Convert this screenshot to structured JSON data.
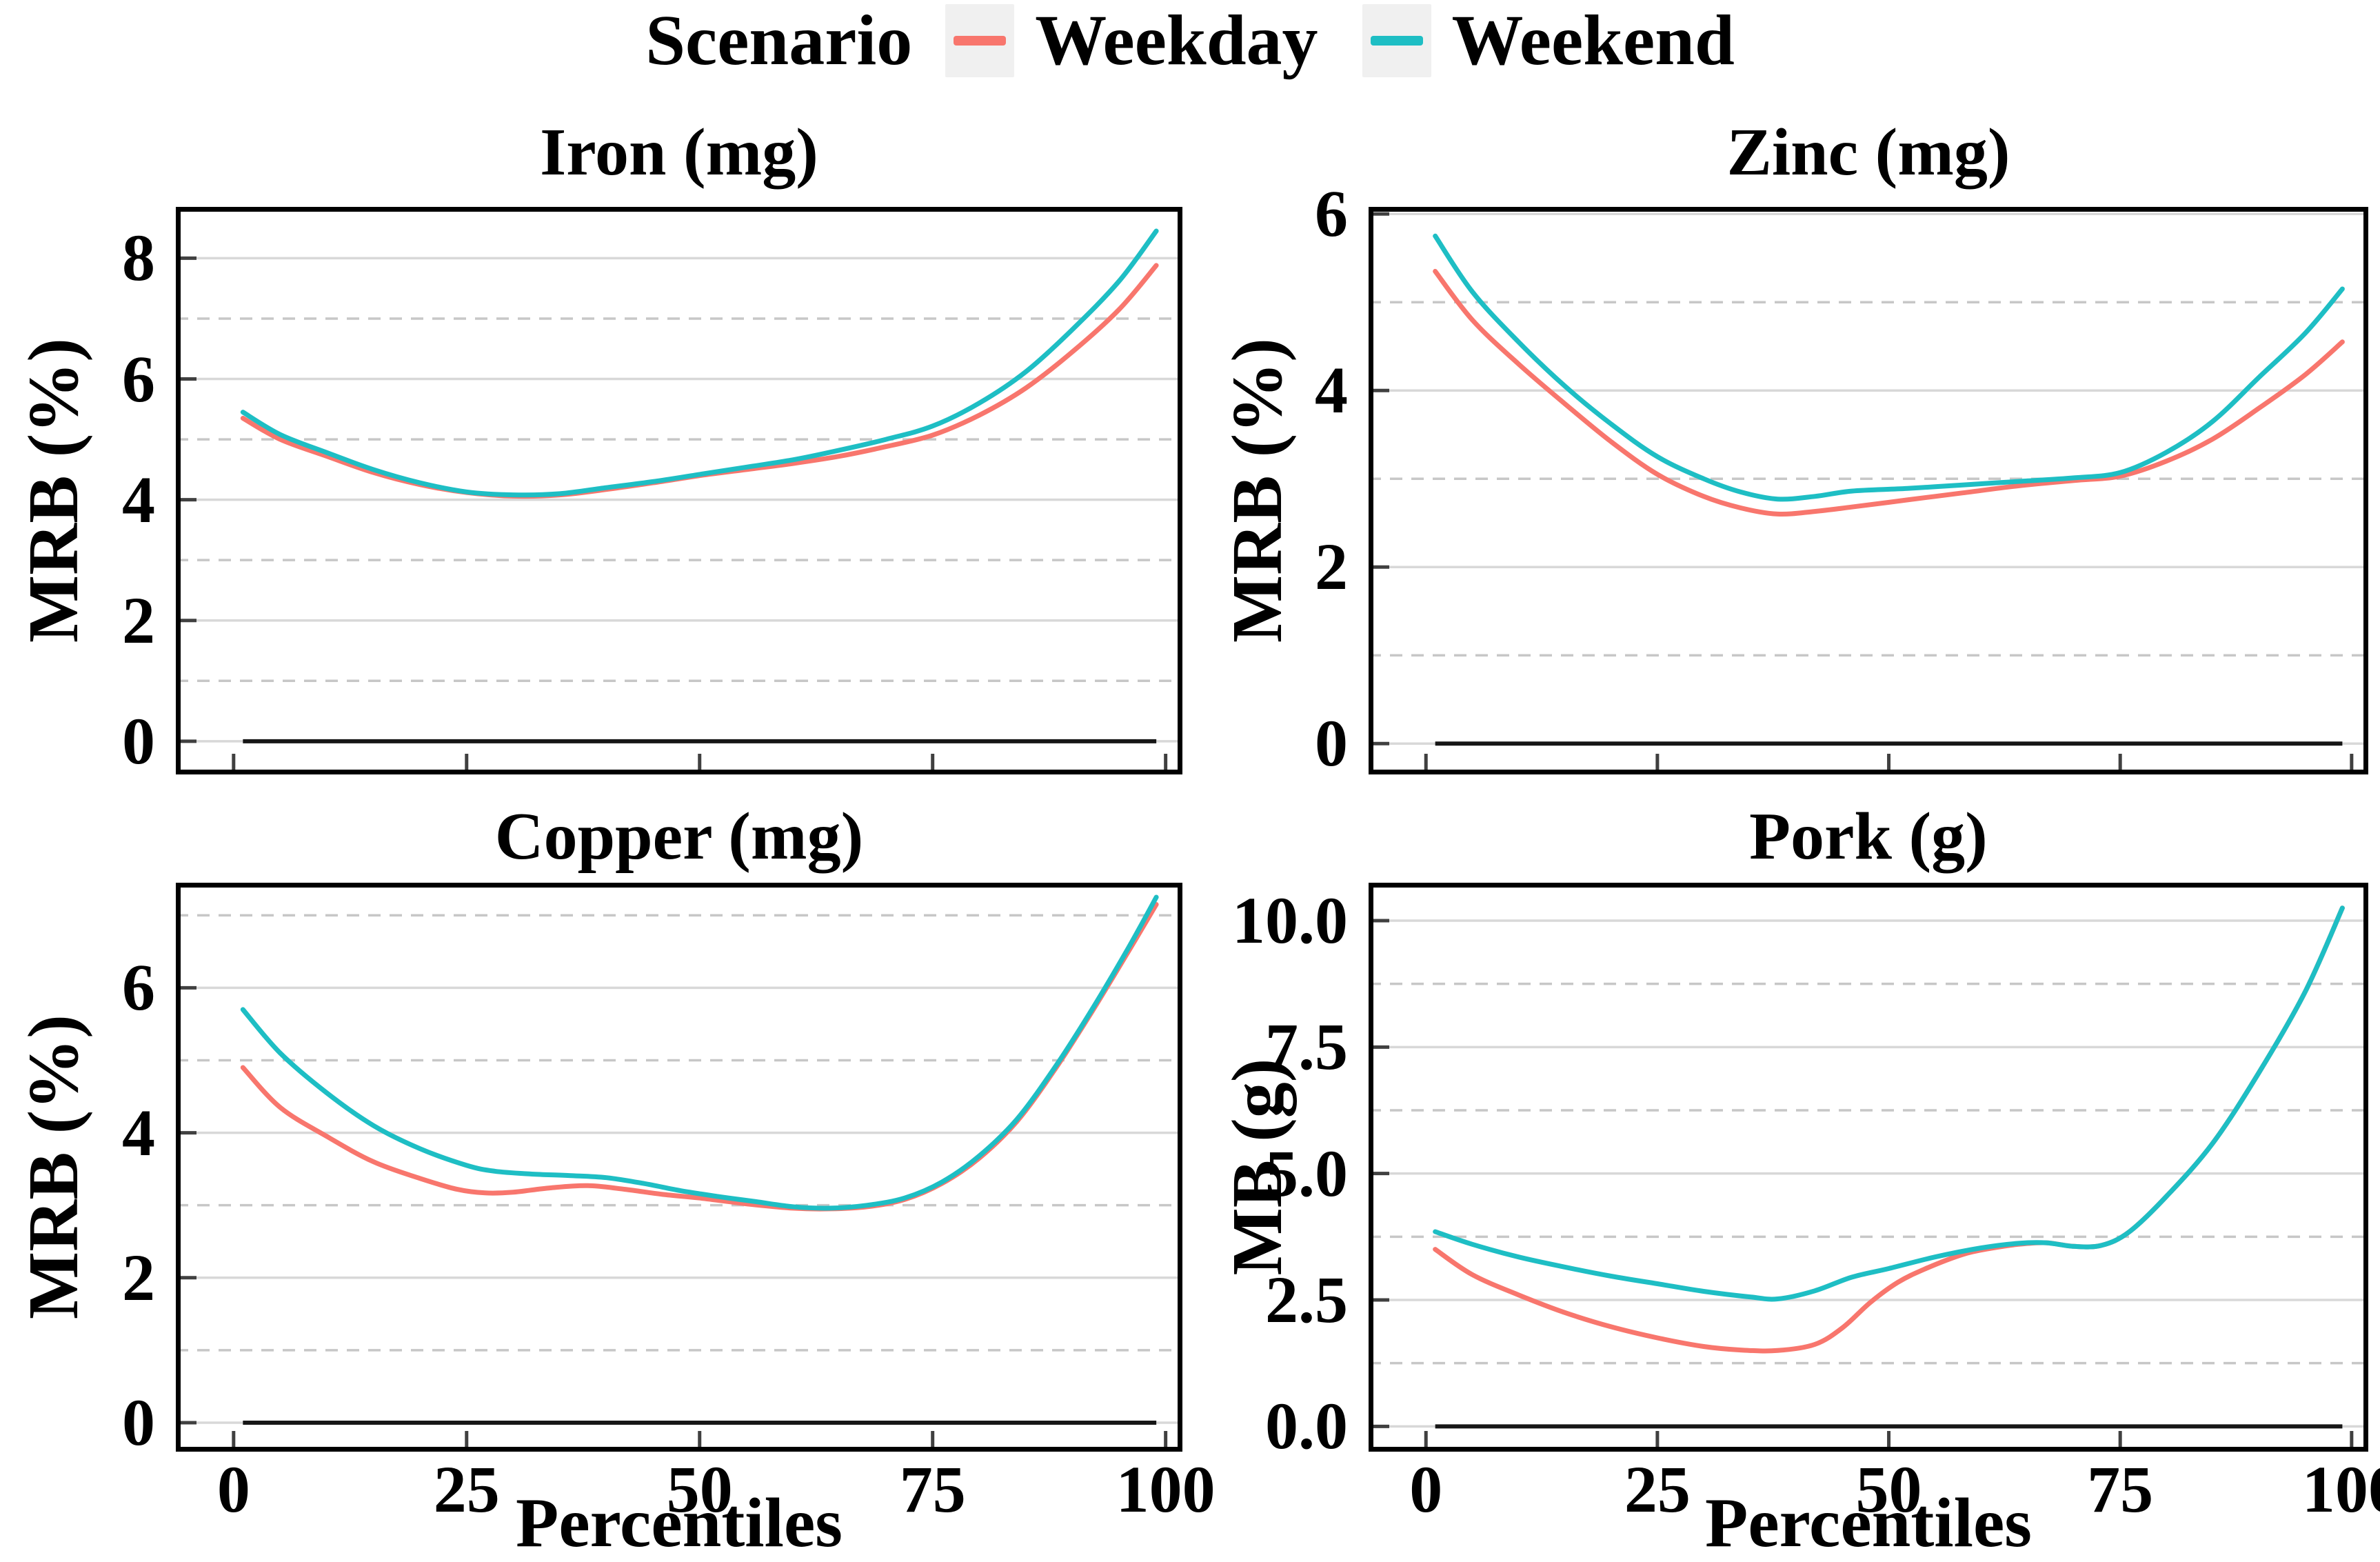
{
  "legend": {
    "title": "Scenario",
    "items": [
      {
        "label": "Weekday",
        "color": "#F8766D"
      },
      {
        "label": "Weekend",
        "color": "#1EBEC4"
      }
    ]
  },
  "colors": {
    "weekday": "#F8766D",
    "weekend": "#1EBEC4",
    "grid_major": "#D8D8D8",
    "grid_minor": "#C7C7C7",
    "zero_line": "#161616",
    "panel_border": "#000000",
    "tick_mark": "#404040",
    "legend_key_bg": "#F0F0F0",
    "text": "#000000"
  },
  "chart_data": [
    {
      "type": "line",
      "title": "Iron (mg)",
      "ylabel": "MRB (%)",
      "xlabel": "",
      "xlim": [
        -6.2,
        101.8
      ],
      "ylim": [
        -0.55,
        8.85
      ],
      "xticks": [
        0,
        25,
        50,
        75,
        100
      ],
      "xtick_labels": [
        "0",
        "25",
        "50",
        "75",
        "100"
      ],
      "yticks": [
        0,
        2,
        4,
        6,
        8
      ],
      "ytick_labels": [
        "0",
        "2",
        "4",
        "6",
        "8"
      ],
      "yminor": [
        1,
        3,
        5,
        7
      ],
      "grid": true,
      "legend_position": "top",
      "zero_line": true,
      "series": [
        {
          "name": "Weekday",
          "color": "#F8766D",
          "points": [
            [
              1,
              5.35
            ],
            [
              5,
              5.0
            ],
            [
              10,
              4.72
            ],
            [
              15,
              4.45
            ],
            [
              20,
              4.25
            ],
            [
              25,
              4.12
            ],
            [
              30,
              4.06
            ],
            [
              35,
              4.08
            ],
            [
              40,
              4.17
            ],
            [
              45,
              4.28
            ],
            [
              50,
              4.4
            ],
            [
              55,
              4.5
            ],
            [
              60,
              4.6
            ],
            [
              65,
              4.72
            ],
            [
              70,
              4.88
            ],
            [
              75,
              5.07
            ],
            [
              80,
              5.4
            ],
            [
              85,
              5.85
            ],
            [
              90,
              6.45
            ],
            [
              95,
              7.15
            ],
            [
              99,
              7.88
            ]
          ]
        },
        {
          "name": "Weekend",
          "color": "#1EBEC4",
          "points": [
            [
              1,
              5.45
            ],
            [
              5,
              5.08
            ],
            [
              10,
              4.78
            ],
            [
              15,
              4.5
            ],
            [
              20,
              4.28
            ],
            [
              25,
              4.13
            ],
            [
              30,
              4.08
            ],
            [
              35,
              4.1
            ],
            [
              40,
              4.2
            ],
            [
              45,
              4.3
            ],
            [
              50,
              4.42
            ],
            [
              55,
              4.54
            ],
            [
              60,
              4.66
            ],
            [
              65,
              4.82
            ],
            [
              70,
              5.0
            ],
            [
              75,
              5.22
            ],
            [
              80,
              5.6
            ],
            [
              85,
              6.12
            ],
            [
              90,
              6.82
            ],
            [
              95,
              7.62
            ],
            [
              99,
              8.45
            ]
          ]
        }
      ]
    },
    {
      "type": "line",
      "title": "Zinc (mg)",
      "ylabel": "MRB (%)",
      "xlabel": "",
      "xlim": [
        -6.2,
        101.8
      ],
      "ylim": [
        -0.35,
        6.08
      ],
      "xticks": [
        0,
        25,
        50,
        75,
        100
      ],
      "xtick_labels": [
        "0",
        "25",
        "50",
        "75",
        "100"
      ],
      "yticks": [
        0,
        2,
        4,
        6
      ],
      "ytick_labels": [
        "0",
        "2",
        "4",
        "6"
      ],
      "yminor": [
        1,
        3,
        5
      ],
      "grid": true,
      "legend_position": "top",
      "zero_line": true,
      "series": [
        {
          "name": "Weekday",
          "color": "#F8766D",
          "points": [
            [
              1,
              5.35
            ],
            [
              5,
              4.8
            ],
            [
              10,
              4.3
            ],
            [
              15,
              3.85
            ],
            [
              20,
              3.42
            ],
            [
              25,
              3.05
            ],
            [
              30,
              2.8
            ],
            [
              34,
              2.67
            ],
            [
              38,
              2.6
            ],
            [
              42,
              2.63
            ],
            [
              46,
              2.68
            ],
            [
              52,
              2.76
            ],
            [
              58,
              2.84
            ],
            [
              64,
              2.92
            ],
            [
              70,
              2.98
            ],
            [
              75,
              3.03
            ],
            [
              80,
              3.2
            ],
            [
              85,
              3.45
            ],
            [
              90,
              3.8
            ],
            [
              95,
              4.18
            ],
            [
              99,
              4.55
            ]
          ]
        },
        {
          "name": "Weekend",
          "color": "#1EBEC4",
          "points": [
            [
              1,
              5.75
            ],
            [
              5,
              5.12
            ],
            [
              10,
              4.55
            ],
            [
              15,
              4.05
            ],
            [
              20,
              3.62
            ],
            [
              25,
              3.25
            ],
            [
              30,
              3.0
            ],
            [
              34,
              2.85
            ],
            [
              38,
              2.77
            ],
            [
              42,
              2.8
            ],
            [
              46,
              2.86
            ],
            [
              52,
              2.89
            ],
            [
              58,
              2.93
            ],
            [
              64,
              2.97
            ],
            [
              70,
              3.01
            ],
            [
              75,
              3.07
            ],
            [
              80,
              3.3
            ],
            [
              85,
              3.65
            ],
            [
              90,
              4.15
            ],
            [
              95,
              4.65
            ],
            [
              99,
              5.15
            ]
          ]
        }
      ]
    },
    {
      "type": "line",
      "title": "Copper (mg)",
      "ylabel": "MRB (%)",
      "xlabel": "Percentiles",
      "xlim": [
        -6.2,
        101.8
      ],
      "ylim": [
        -0.4,
        7.45
      ],
      "xticks": [
        0,
        25,
        50,
        75,
        100
      ],
      "xtick_labels": [
        "0",
        "25",
        "50",
        "75",
        "100"
      ],
      "yticks": [
        0,
        2,
        4,
        6
      ],
      "ytick_labels": [
        "0",
        "2",
        "4",
        "6"
      ],
      "yminor": [
        1,
        3,
        5,
        7
      ],
      "grid": true,
      "legend_position": "top",
      "zero_line": true,
      "series": [
        {
          "name": "Weekday",
          "color": "#F8766D",
          "points": [
            [
              1,
              4.9
            ],
            [
              5,
              4.35
            ],
            [
              10,
              3.95
            ],
            [
              15,
              3.6
            ],
            [
              20,
              3.37
            ],
            [
              24,
              3.22
            ],
            [
              27,
              3.17
            ],
            [
              30,
              3.18
            ],
            [
              34,
              3.24
            ],
            [
              38,
              3.27
            ],
            [
              42,
              3.22
            ],
            [
              46,
              3.15
            ],
            [
              50,
              3.1
            ],
            [
              55,
              3.02
            ],
            [
              60,
              2.96
            ],
            [
              64,
              2.95
            ],
            [
              68,
              2.98
            ],
            [
              72,
              3.08
            ],
            [
              76,
              3.3
            ],
            [
              80,
              3.65
            ],
            [
              84,
              4.15
            ],
            [
              88,
              4.85
            ],
            [
              92,
              5.65
            ],
            [
              96,
              6.5
            ],
            [
              99,
              7.15
            ]
          ]
        },
        {
          "name": "Weekend",
          "color": "#1EBEC4",
          "points": [
            [
              1,
              5.7
            ],
            [
              5,
              5.1
            ],
            [
              10,
              4.55
            ],
            [
              15,
              4.1
            ],
            [
              20,
              3.78
            ],
            [
              25,
              3.55
            ],
            [
              28,
              3.47
            ],
            [
              32,
              3.43
            ],
            [
              36,
              3.41
            ],
            [
              40,
              3.38
            ],
            [
              44,
              3.3
            ],
            [
              48,
              3.2
            ],
            [
              52,
              3.12
            ],
            [
              56,
              3.05
            ],
            [
              60,
              2.98
            ],
            [
              64,
              2.96
            ],
            [
              68,
              3.0
            ],
            [
              72,
              3.1
            ],
            [
              76,
              3.32
            ],
            [
              80,
              3.68
            ],
            [
              84,
              4.18
            ],
            [
              88,
              4.88
            ],
            [
              92,
              5.68
            ],
            [
              96,
              6.55
            ],
            [
              99,
              7.25
            ]
          ]
        }
      ]
    },
    {
      "type": "line",
      "title": "Pork (g)",
      "ylabel": "MB (g)",
      "xlabel": "Percentiles",
      "xlim": [
        -6.2,
        101.8
      ],
      "ylim": [
        -0.5,
        10.75
      ],
      "xticks": [
        0,
        25,
        50,
        75,
        100
      ],
      "xtick_labels": [
        "0",
        "25",
        "50",
        "75",
        "100"
      ],
      "yticks": [
        0,
        2.5,
        5,
        7.5,
        10
      ],
      "ytick_labels": [
        "0.0",
        "2.5",
        "5.0",
        "7.5",
        "10.0"
      ],
      "yminor": [
        1.25,
        3.75,
        6.25,
        8.75
      ],
      "grid": true,
      "legend_position": "top",
      "zero_line": true,
      "series": [
        {
          "name": "Weekday",
          "color": "#F8766D",
          "points": [
            [
              1,
              3.5
            ],
            [
              5,
              3.0
            ],
            [
              10,
              2.6
            ],
            [
              15,
              2.25
            ],
            [
              20,
              1.97
            ],
            [
              25,
              1.75
            ],
            [
              30,
              1.58
            ],
            [
              34,
              1.51
            ],
            [
              38,
              1.5
            ],
            [
              42,
              1.62
            ],
            [
              45,
              1.95
            ],
            [
              48,
              2.45
            ],
            [
              51,
              2.85
            ],
            [
              54,
              3.12
            ],
            [
              58,
              3.4
            ],
            [
              61,
              3.52
            ],
            [
              64,
              3.6
            ],
            [
              67,
              3.63
            ],
            [
              70,
              3.56
            ],
            [
              73,
              3.58
            ],
            [
              76,
              3.85
            ],
            [
              80,
              4.55
            ],
            [
              85,
              5.6
            ],
            [
              90,
              7.0
            ],
            [
              95,
              8.6
            ],
            [
              99,
              10.25
            ]
          ]
        },
        {
          "name": "Weekend",
          "color": "#1EBEC4",
          "points": [
            [
              1,
              3.85
            ],
            [
              5,
              3.6
            ],
            [
              10,
              3.35
            ],
            [
              15,
              3.15
            ],
            [
              20,
              2.97
            ],
            [
              25,
              2.82
            ],
            [
              30,
              2.67
            ],
            [
              35,
              2.56
            ],
            [
              38,
              2.52
            ],
            [
              42,
              2.68
            ],
            [
              46,
              2.95
            ],
            [
              50,
              3.12
            ],
            [
              55,
              3.35
            ],
            [
              60,
              3.53
            ],
            [
              64,
              3.62
            ],
            [
              67,
              3.63
            ],
            [
              70,
              3.56
            ],
            [
              73,
              3.58
            ],
            [
              76,
              3.85
            ],
            [
              80,
              4.55
            ],
            [
              85,
              5.6
            ],
            [
              90,
              7.0
            ],
            [
              95,
              8.6
            ],
            [
              99,
              10.25
            ]
          ]
        }
      ]
    }
  ]
}
